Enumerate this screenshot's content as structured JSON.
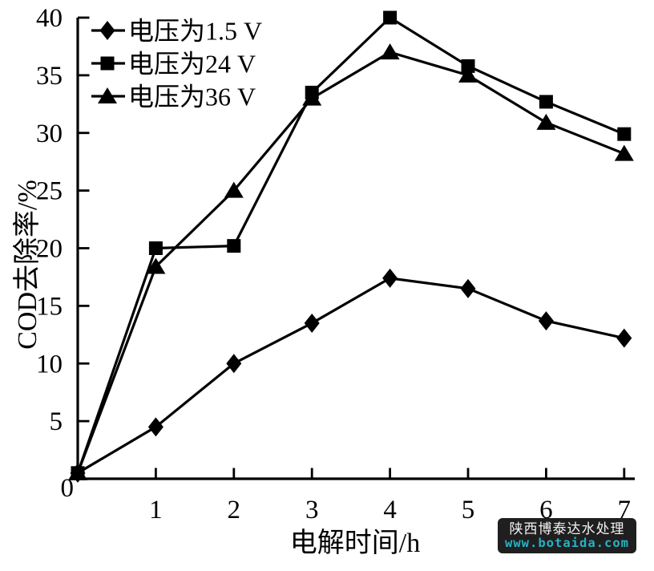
{
  "chart_data": {
    "type": "line",
    "title": "",
    "xlabel": "电解时间/h",
    "ylabel": "COD去除率/%",
    "xlim": [
      0,
      7
    ],
    "ylim": [
      0,
      40
    ],
    "x_ticks": [
      1,
      2,
      3,
      4,
      5,
      6,
      7
    ],
    "y_ticks": [
      0,
      5,
      10,
      15,
      20,
      25,
      30,
      35,
      40
    ],
    "origin_label": "0",
    "grid": false,
    "legend_position": "top-left",
    "line_color": "#000000",
    "x": [
      0,
      1,
      2,
      3,
      4,
      5,
      6,
      7
    ],
    "series": [
      {
        "name": "电压为1.5 V",
        "marker": "diamond",
        "values": [
          0.5,
          4.5,
          10.0,
          13.5,
          17.4,
          16.5,
          13.7,
          12.2
        ]
      },
      {
        "name": "电压为24 V",
        "marker": "square",
        "values": [
          0.5,
          20.0,
          20.2,
          33.5,
          40.0,
          35.8,
          32.7,
          29.9
        ]
      },
      {
        "name": "电压为36 V",
        "marker": "triangle",
        "values": [
          0.5,
          18.4,
          25.0,
          33.0,
          37.0,
          35.0,
          30.9,
          28.2
        ]
      }
    ]
  },
  "watermark": {
    "line1": "陕西博泰达水处理",
    "line2": "www.botaida.com",
    "bg_color": "#1f1f1f",
    "line1_color": "#f2f2f2",
    "line2_color": "#27b2c6"
  }
}
